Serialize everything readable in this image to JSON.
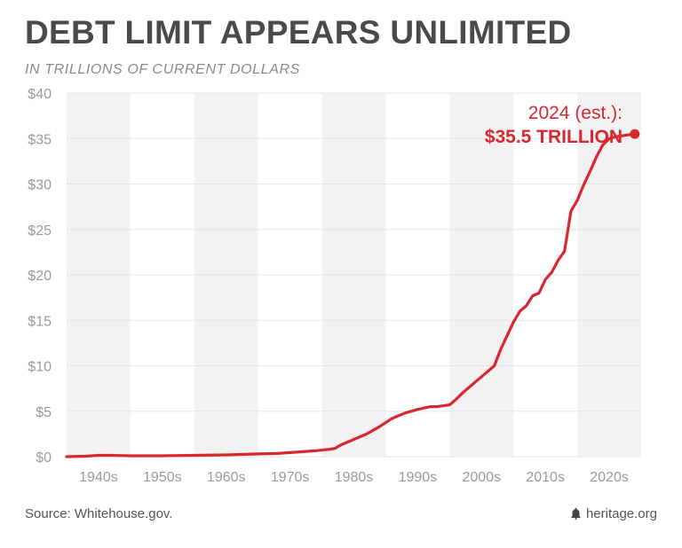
{
  "header": {
    "title": "DEBT LIMIT APPEARS UNLIMITED",
    "subtitle": "IN TRILLIONS OF CURRENT DOLLARS"
  },
  "footer": {
    "source": "Source: Whitehouse.gov.",
    "brand": "heritage.org",
    "brand_icon": "liberty-bell-icon"
  },
  "colors": {
    "line": "#d7282f",
    "band_shade": "#f2f2f2",
    "text": "#4a4a4a",
    "tick": "#9a9a9a"
  },
  "chart_data": {
    "type": "line",
    "title": "DEBT LIMIT APPEARS UNLIMITED",
    "subtitle": "IN TRILLIONS OF CURRENT DOLLARS",
    "xlim": [
      1935,
      2025
    ],
    "ylim": [
      0,
      40
    ],
    "y_ticks": [
      0,
      5,
      10,
      15,
      20,
      25,
      30,
      35,
      40
    ],
    "y_tick_labels": [
      "$0",
      "$5",
      "$10",
      "$15",
      "$20",
      "$25",
      "$30",
      "$35",
      "$40"
    ],
    "categories": [
      "1940s",
      "1950s",
      "1960s",
      "1970s",
      "1980s",
      "1990s",
      "2000s",
      "2010s",
      "2020s"
    ],
    "bands": [
      {
        "label": "1940s",
        "start": 1935,
        "end": 1945,
        "shaded": true
      },
      {
        "label": "1950s",
        "start": 1945,
        "end": 1955,
        "shaded": false
      },
      {
        "label": "1960s",
        "start": 1955,
        "end": 1965,
        "shaded": true
      },
      {
        "label": "1970s",
        "start": 1965,
        "end": 1975,
        "shaded": false
      },
      {
        "label": "1980s",
        "start": 1975,
        "end": 1985,
        "shaded": true
      },
      {
        "label": "1990s",
        "start": 1985,
        "end": 1995,
        "shaded": false
      },
      {
        "label": "2000s",
        "start": 1995,
        "end": 2005,
        "shaded": true
      },
      {
        "label": "2010s",
        "start": 2005,
        "end": 2015,
        "shaded": false
      },
      {
        "label": "2020s",
        "start": 2015,
        "end": 2025,
        "shaded": true
      }
    ],
    "grid": true,
    "series": [
      {
        "x": [
          1935,
          1938,
          1940,
          1942,
          1945,
          1950,
          1955,
          1960,
          1965,
          1968,
          1970,
          1972,
          1974,
          1976,
          1977,
          1978,
          1980,
          1982,
          1984,
          1986,
          1988,
          1990,
          1992,
          1993,
          1995,
          1996,
          1997,
          1998,
          2000,
          2002,
          2003,
          2004,
          2005,
          2006,
          2007,
          2008,
          2009,
          2010,
          2011,
          2012,
          2013,
          2014,
          2015,
          2016,
          2017,
          2018,
          2019,
          2020,
          2021,
          2022,
          2023,
          2024
        ],
        "y": [
          0.0,
          0.05,
          0.15,
          0.15,
          0.1,
          0.1,
          0.15,
          0.2,
          0.3,
          0.35,
          0.45,
          0.55,
          0.65,
          0.8,
          0.9,
          1.3,
          1.9,
          2.5,
          3.3,
          4.2,
          4.8,
          5.2,
          5.5,
          5.5,
          5.7,
          6.3,
          7.0,
          7.6,
          8.8,
          10.0,
          11.8,
          13.3,
          14.8,
          16.0,
          16.6,
          17.7,
          18.0,
          19.5,
          20.3,
          21.6,
          22.6,
          27.0,
          28.2,
          29.9,
          31.4,
          33.0,
          34.3,
          35.0,
          35.2,
          35.3,
          35.4,
          35.5
        ]
      }
    ],
    "annotation": {
      "line1": "2024 (est.):",
      "line2": "$35.5 TRILLION",
      "x": 2024,
      "y": 35.5
    }
  }
}
